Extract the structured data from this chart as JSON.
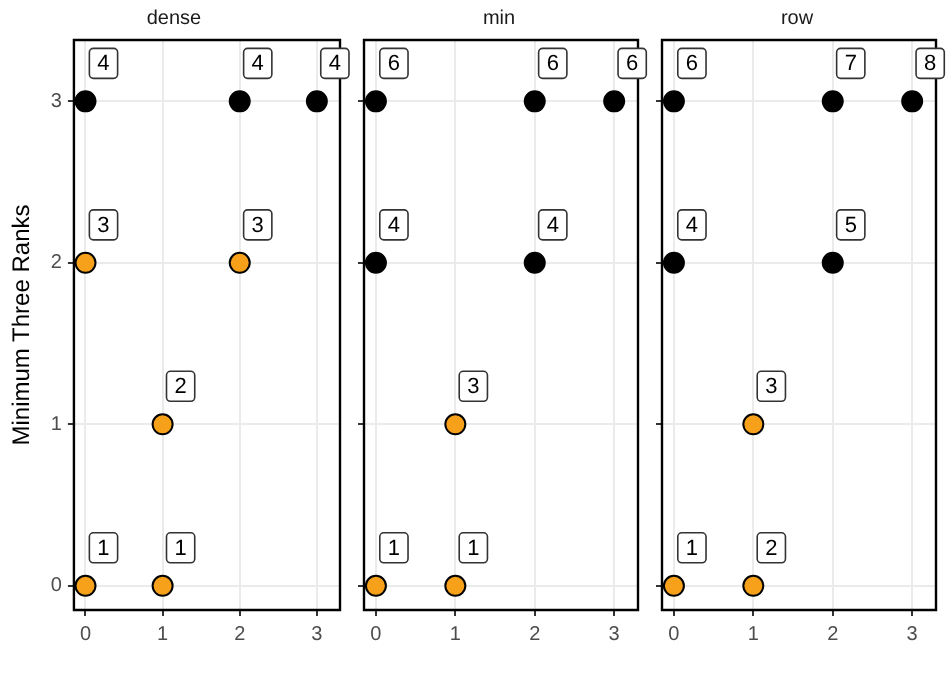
{
  "chart_data": [
    {
      "type": "scatter",
      "title": "dense",
      "ylabel": "Minimum Three Ranks",
      "x": [
        0,
        1,
        1,
        0,
        2,
        0,
        2,
        3
      ],
      "values": [
        0,
        0,
        1,
        2,
        2,
        3,
        3,
        3
      ],
      "colors": [
        "#f7a11a",
        "#f7a11a",
        "#f7a11a",
        "#f7a11a",
        "#f7a11a",
        "#000000",
        "#000000",
        "#000000"
      ],
      "annotations": [
        {
          "text": "1",
          "x": 0,
          "y": 0
        },
        {
          "text": "1",
          "x": 1,
          "y": 0
        },
        {
          "text": "2",
          "x": 1,
          "y": 1
        },
        {
          "text": "3",
          "x": 0,
          "y": 2
        },
        {
          "text": "3",
          "x": 2,
          "y": 2
        },
        {
          "text": "4",
          "x": 0,
          "y": 3
        },
        {
          "text": "4",
          "x": 2,
          "y": 3
        },
        {
          "text": "4",
          "x": 3,
          "y": 3
        }
      ],
      "xlim": [
        -0.15,
        3.3
      ],
      "ylim": [
        -0.15,
        3.38
      ],
      "xticks": [
        0,
        1,
        2,
        3
      ],
      "yticks": [
        0,
        1,
        2,
        3
      ],
      "grid": true,
      "marker": "circle"
    },
    {
      "type": "scatter",
      "title": "min",
      "x": [
        0,
        1,
        1,
        0,
        2,
        0,
        2,
        3
      ],
      "values": [
        0,
        0,
        1,
        2,
        2,
        3,
        3,
        3
      ],
      "colors": [
        "#f7a11a",
        "#f7a11a",
        "#f7a11a",
        "#000000",
        "#000000",
        "#000000",
        "#000000",
        "#000000"
      ],
      "annotations": [
        {
          "text": "1",
          "x": 0,
          "y": 0
        },
        {
          "text": "1",
          "x": 1,
          "y": 0
        },
        {
          "text": "3",
          "x": 1,
          "y": 1
        },
        {
          "text": "4",
          "x": 0,
          "y": 2
        },
        {
          "text": "4",
          "x": 2,
          "y": 2
        },
        {
          "text": "6",
          "x": 0,
          "y": 3
        },
        {
          "text": "6",
          "x": 2,
          "y": 3
        },
        {
          "text": "6",
          "x": 3,
          "y": 3
        }
      ],
      "xlim": [
        -0.15,
        3.3
      ],
      "ylim": [
        -0.15,
        3.38
      ],
      "xticks": [
        0,
        1,
        2,
        3
      ],
      "yticks": [
        0,
        1,
        2,
        3
      ],
      "grid": true,
      "marker": "circle",
      "tick_labels": "x"
    },
    {
      "type": "scatter",
      "title": "row",
      "x": [
        0,
        1,
        1,
        0,
        2,
        0,
        2,
        3
      ],
      "values": [
        0,
        0,
        1,
        2,
        2,
        3,
        3,
        3
      ],
      "colors": [
        "#f7a11a",
        "#f7a11a",
        "#f7a11a",
        "#000000",
        "#000000",
        "#000000",
        "#000000",
        "#000000"
      ],
      "annotations": [
        {
          "text": "1",
          "x": 0,
          "y": 0
        },
        {
          "text": "2",
          "x": 1,
          "y": 0
        },
        {
          "text": "3",
          "x": 1,
          "y": 1
        },
        {
          "text": "4",
          "x": 0,
          "y": 2
        },
        {
          "text": "5",
          "x": 2,
          "y": 2
        },
        {
          "text": "6",
          "x": 0,
          "y": 3
        },
        {
          "text": "7",
          "x": 2,
          "y": 3
        },
        {
          "text": "8",
          "x": 3,
          "y": 3
        }
      ],
      "xlim": [
        -0.15,
        3.3
      ],
      "ylim": [
        -0.15,
        3.38
      ],
      "xticks": [
        0,
        1,
        2,
        3
      ],
      "yticks": [
        0,
        1,
        2,
        3
      ],
      "grid": true,
      "marker": "circle",
      "tick_labels": "x"
    }
  ]
}
